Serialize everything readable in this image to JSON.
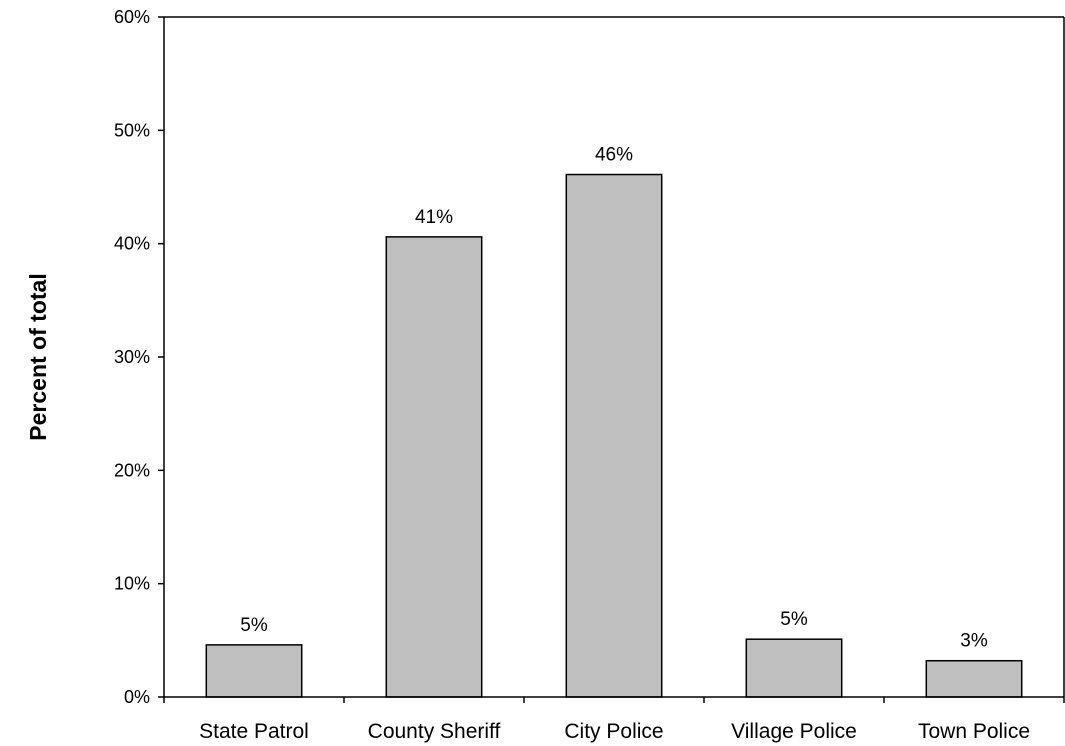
{
  "chart_data": {
    "type": "bar",
    "title": "",
    "xlabel": "",
    "ylabel": "Percent of total",
    "ylim": [
      0,
      60
    ],
    "yticks": [
      0,
      10,
      20,
      30,
      40,
      50,
      60
    ],
    "ytick_labels": [
      "0%",
      "10%",
      "20%",
      "30%",
      "40%",
      "50%",
      "60%"
    ],
    "categories": [
      "State Patrol",
      "County Sheriff",
      "City Police",
      "Village Police",
      "Town Police"
    ],
    "values": [
      4.6,
      40.6,
      46.1,
      5.1,
      3.2
    ],
    "data_labels": [
      "5%",
      "41%",
      "46%",
      "5%",
      "3%"
    ],
    "grid": false,
    "legend": "none",
    "colors": {
      "bar_fill": "#c0c0c0",
      "bar_stroke": "#000000",
      "axis": "#000000"
    }
  }
}
